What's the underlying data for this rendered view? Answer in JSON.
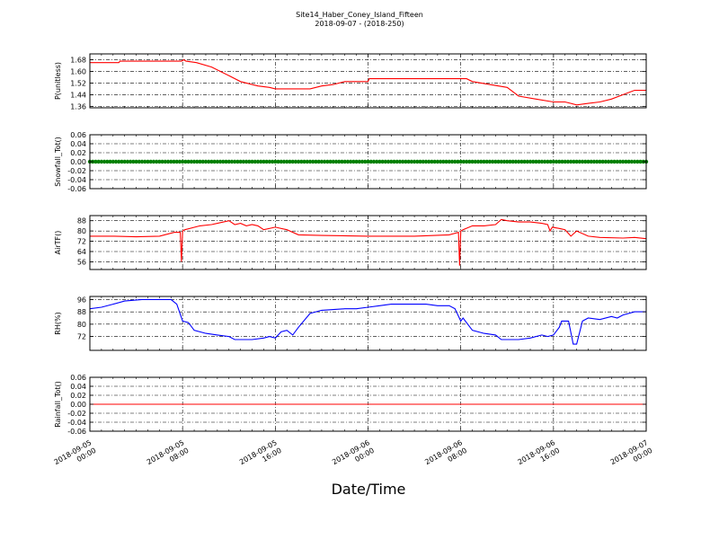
{
  "header": {
    "title": "Site14_Haber_Coney_Island_Fifteen",
    "subtitle": "2018-09-07 - (2018-250)"
  },
  "x_axis": {
    "label": "Date/Time",
    "tick_labels": [
      [
        "2018-09-05",
        "00:00"
      ],
      [
        "2018-09-05",
        "08:00"
      ],
      [
        "2018-09-05",
        "16:00"
      ],
      [
        "2018-09-06",
        "00:00"
      ],
      [
        "2018-09-06",
        "08:00"
      ],
      [
        "2018-09-06",
        "16:00"
      ],
      [
        "2018-09-07",
        "00:00"
      ]
    ]
  },
  "chart_data": [
    {
      "type": "line",
      "ylabel": "P(unitless)",
      "ylim": [
        1.35,
        1.72
      ],
      "yticks": [
        1.36,
        1.44,
        1.52,
        1.6,
        1.68
      ],
      "ytick_labels": [
        "1.36",
        "1.44",
        "1.52",
        "1.60",
        "1.68"
      ],
      "grid": true,
      "color": "#ff0000",
      "x_hours": [
        0,
        2.5,
        2.6,
        7.9,
        8.1,
        8.3,
        9.2,
        10.5,
        12.0,
        13.0,
        14.5,
        15.5,
        16.0,
        19.0,
        20.0,
        21.0,
        22.0,
        24.0,
        24.1,
        27.5,
        31.5,
        32.5,
        33.0,
        36.0,
        37.0,
        38.5,
        40.0,
        41.0,
        42.0,
        43.0,
        44.0,
        45.0,
        46.0,
        47.0,
        48.0
      ],
      "values": [
        1.66,
        1.66,
        1.67,
        1.67,
        1.68,
        1.67,
        1.66,
        1.63,
        1.57,
        1.53,
        1.5,
        1.49,
        1.48,
        1.48,
        1.5,
        1.51,
        1.53,
        1.53,
        1.55,
        1.55,
        1.55,
        1.55,
        1.53,
        1.49,
        1.43,
        1.41,
        1.39,
        1.39,
        1.37,
        1.38,
        1.39,
        1.41,
        1.44,
        1.47,
        1.47
      ]
    },
    {
      "type": "scatter",
      "ylabel": "Snowfall_Tot()",
      "ylim": [
        -0.06,
        0.06
      ],
      "yticks": [
        -0.06,
        -0.04,
        -0.02,
        0.0,
        0.02,
        0.04,
        0.06
      ],
      "ytick_labels": [
        "-0.06",
        "-0.04",
        "-0.02",
        "0.00",
        "0.02",
        "0.04",
        "0.06"
      ],
      "grid": true,
      "color": "#007f00",
      "constant_value": 0.0
    },
    {
      "type": "line",
      "ylabel": "AirTF()",
      "ylim": [
        50,
        92
      ],
      "yticks": [
        56,
        64,
        72,
        80,
        88
      ],
      "ytick_labels": [
        "56",
        "64",
        "72",
        "80",
        "88"
      ],
      "grid": true,
      "color": "#ff0000",
      "x_hours": [
        0,
        2.0,
        4.0,
        6.0,
        7.3,
        7.8,
        7.9,
        8.0,
        8.2,
        9.5,
        10.5,
        11.0,
        12.0,
        12.5,
        13.0,
        13.5,
        14.0,
        14.5,
        15.0,
        16.0,
        17.0,
        18.0,
        20.0,
        24.0,
        28.0,
        31.0,
        31.8,
        31.9,
        32.0,
        32.2,
        33.0,
        34.0,
        35.0,
        35.5,
        36.0,
        37.0,
        38.0,
        39.0,
        39.5,
        39.7,
        39.9,
        40.5,
        41.0,
        41.5,
        42.0,
        43.0,
        44.0,
        46.0,
        47.0,
        48.0
      ],
      "values": [
        76,
        76,
        75.5,
        76,
        79,
        79,
        56,
        80,
        81,
        84,
        85,
        86,
        88,
        85,
        86,
        84,
        85,
        84,
        81,
        83,
        81,
        77,
        76.5,
        76,
        76,
        77,
        79,
        53,
        80,
        81,
        84,
        84,
        85,
        89,
        88,
        87,
        87,
        86,
        85,
        80,
        83,
        82,
        81,
        76,
        80,
        76,
        75,
        74.5,
        75,
        74
      ]
    },
    {
      "type": "line",
      "ylabel": "RH(%)",
      "ylim": [
        63,
        98
      ],
      "yticks": [
        72,
        80,
        88,
        96
      ],
      "ytick_labels": [
        "72",
        "80",
        "88",
        "96"
      ],
      "grid": true,
      "color": "#0000ff",
      "x_hours": [
        0,
        1.0,
        2.0,
        3.0,
        4.5,
        6.0,
        7.0,
        7.5,
        8.0,
        8.5,
        9.0,
        10.0,
        11.0,
        12.0,
        12.5,
        13.0,
        14.0,
        15.0,
        15.5,
        16.0,
        16.5,
        17.0,
        17.5,
        18.0,
        19.0,
        20.0,
        21.0,
        22.0,
        23.0,
        24.0,
        25.0,
        26.0,
        27.0,
        28.0,
        29.0,
        30.0,
        31.0,
        31.5,
        32.0,
        32.2,
        33.0,
        34.0,
        35.0,
        35.5,
        36.0,
        37.0,
        38.0,
        39.0,
        39.5,
        40.0,
        40.5,
        40.7,
        41.0,
        41.3,
        41.7,
        42.0,
        42.5,
        43.0,
        44.0,
        45.0,
        45.5,
        46.0,
        47.0,
        48.0
      ],
      "values": [
        90,
        91,
        93,
        95,
        96,
        96,
        96,
        93,
        82,
        81,
        76,
        74,
        73,
        72,
        70,
        70,
        70,
        71,
        72,
        71,
        75,
        76,
        73,
        78,
        87,
        89,
        89.5,
        90,
        90,
        91,
        92,
        93,
        93,
        93,
        93,
        92,
        92,
        90,
        82,
        84,
        76,
        74,
        73,
        70,
        70,
        70,
        71,
        73,
        72,
        73,
        78,
        82,
        82,
        82,
        67,
        67,
        82,
        84,
        83,
        85,
        84,
        86,
        88,
        88
      ]
    },
    {
      "type": "line",
      "ylabel": "Rainfall_Tot()",
      "ylim": [
        -0.06,
        0.06
      ],
      "yticks": [
        -0.06,
        -0.04,
        -0.02,
        0.0,
        0.02,
        0.04,
        0.06
      ],
      "ytick_labels": [
        "-0.06",
        "-0.04",
        "-0.02",
        "0.00",
        "0.02",
        "0.04",
        "0.06"
      ],
      "grid": true,
      "color": "#ff0000",
      "x_hours": [
        0,
        48
      ],
      "values": [
        0,
        0
      ]
    }
  ]
}
